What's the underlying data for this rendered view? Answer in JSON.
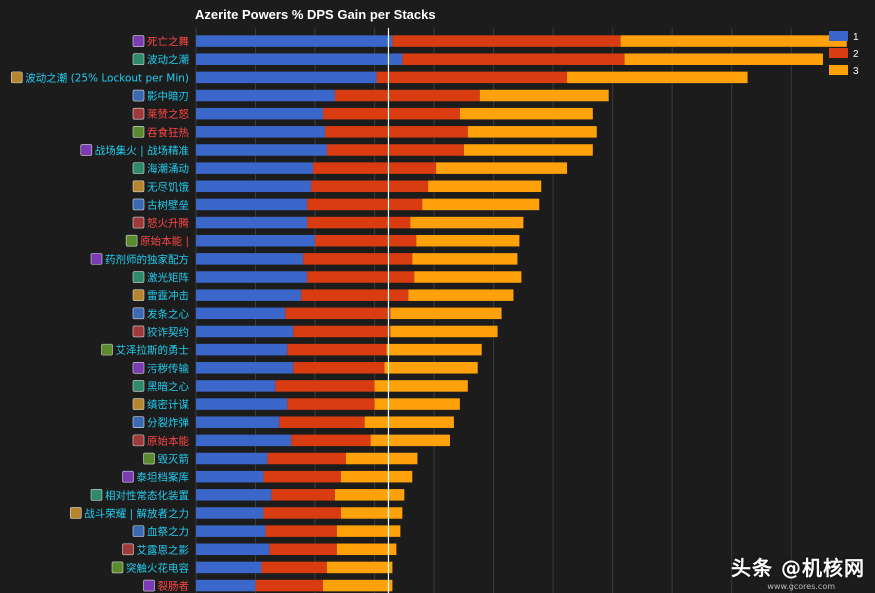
{
  "chart_data": {
    "type": "bar",
    "orientation": "horizontal",
    "stacked": true,
    "title": "Azerite Powers % DPS Gain per Stacks",
    "xlabel": "",
    "ylabel": "",
    "xlim": [
      0,
      15.7
    ],
    "reference_line": 4.85,
    "grid": true,
    "legend_position": "top-right",
    "colors": {
      "1": "#3a67c9",
      "2": "#d93c10",
      "3": "#ffa10a"
    },
    "categories": [
      "死亡之舞",
      "波动之潮",
      "波动之潮 (25% Lockout per Min)",
      "影中暗刃",
      "莱赞之怒",
      "吞食狂热",
      "战场集火 | 战场精准",
      "海潮涌动",
      "无尽饥饿",
      "古树壁垒",
      "怒火升腾",
      "原始本能 |",
      "药剂师的独家配方",
      "激光矩阵",
      "雷霆冲击",
      "发条之心",
      "狡诈契约",
      "艾泽拉斯的勇士",
      "污秽传输",
      "黑暗之心",
      "缜密计谋",
      "分裂炸弹",
      "原始本能",
      "毁灭箭",
      "泰坦档案库",
      "相对性常态化装置",
      "战斗荣耀 | 解放者之力",
      "血祭之力",
      "艾露恩之影",
      "突触火花电容",
      "裂肠者"
    ],
    "label_colors": [
      "#ff4545",
      "#22cdf0",
      "#22cdf0",
      "#22cdf0",
      "#ff4545",
      "#ff4545",
      "#22cdf0",
      "#22cdf0",
      "#22cdf0",
      "#22cdf0",
      "#ff4545",
      "#ff4545",
      "#22cdf0",
      "#22cdf0",
      "#22cdf0",
      "#22cdf0",
      "#22cdf0",
      "#22cdf0",
      "#22cdf0",
      "#22cdf0",
      "#22cdf0",
      "#22cdf0",
      "#ff4545",
      "#22cdf0",
      "#22cdf0",
      "#22cdf0",
      "#22cdf0",
      "#22cdf0",
      "#22cdf0",
      "#22cdf0",
      "#ff4545"
    ],
    "series": [
      {
        "name": "1",
        "values": [
          4.95,
          5.2,
          4.55,
          3.5,
          3.2,
          3.25,
          3.3,
          2.95,
          2.9,
          2.8,
          2.8,
          3.0,
          2.7,
          2.8,
          2.65,
          2.25,
          2.45,
          2.3,
          2.45,
          2.0,
          2.3,
          2.1,
          2.4,
          1.8,
          1.7,
          1.9,
          1.7,
          1.75,
          1.85,
          1.65,
          1.5
        ]
      },
      {
        "name": "2",
        "values": [
          5.75,
          5.6,
          4.8,
          3.65,
          3.45,
          3.6,
          3.45,
          3.1,
          2.95,
          2.9,
          2.6,
          2.55,
          2.75,
          2.7,
          2.7,
          2.65,
          2.45,
          2.5,
          2.3,
          2.5,
          2.2,
          2.15,
          2.0,
          1.98,
          1.95,
          1.6,
          1.95,
          1.8,
          1.7,
          1.65,
          1.7
        ]
      },
      {
        "name": "3",
        "values": [
          5.7,
          5.0,
          4.55,
          3.25,
          3.35,
          3.25,
          3.25,
          3.3,
          2.85,
          2.95,
          2.85,
          2.6,
          2.65,
          2.7,
          2.65,
          2.8,
          2.7,
          2.4,
          2.35,
          2.35,
          2.15,
          2.25,
          2.0,
          1.8,
          1.8,
          1.75,
          1.55,
          1.6,
          1.5,
          1.65,
          1.75
        ]
      }
    ]
  },
  "watermark": {
    "text": "头条 @机核网",
    "sub": "www.gcores.com"
  }
}
